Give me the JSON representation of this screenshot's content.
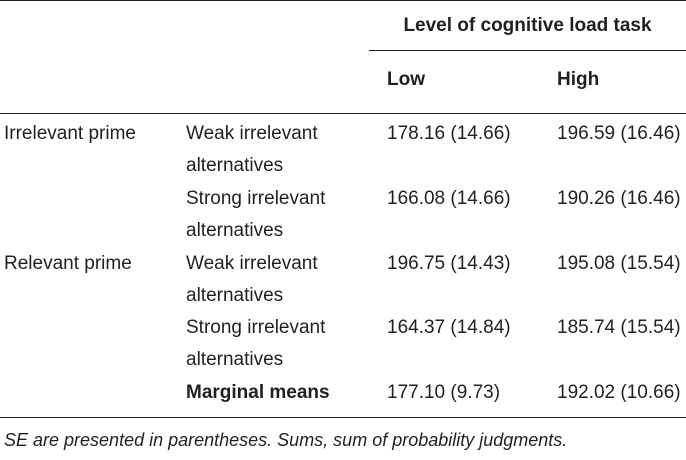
{
  "table": {
    "span_header": "Level of cognitive load task",
    "columns": [
      "Low",
      "High"
    ],
    "rows": [
      {
        "group": "Irrelevant prime",
        "condition_line1": "Weak irrelevant",
        "condition_line2": "alternatives",
        "low": "178.16 (14.66)",
        "high": "196.59 (16.46)"
      },
      {
        "group": "",
        "condition_line1": "Strong irrelevant",
        "condition_line2": "alternatives",
        "low": "166.08 (14.66)",
        "high": "190.26 (16.46)"
      },
      {
        "group": "Relevant prime",
        "condition_line1": "Weak irrelevant",
        "condition_line2": "alternatives",
        "low": "196.75 (14.43)",
        "high": "195.08 (15.54)"
      },
      {
        "group": "",
        "condition_line1": "Strong irrelevant",
        "condition_line2": "alternatives",
        "low": "164.37 (14.84)",
        "high": "185.74 (15.54)"
      }
    ],
    "marginal": {
      "label": "Marginal means",
      "low": "177.10 (9.73)",
      "high": "192.02 (10.66)"
    },
    "footnote": "SE are presented in parentheses. Sums, sum of probability judgments."
  }
}
